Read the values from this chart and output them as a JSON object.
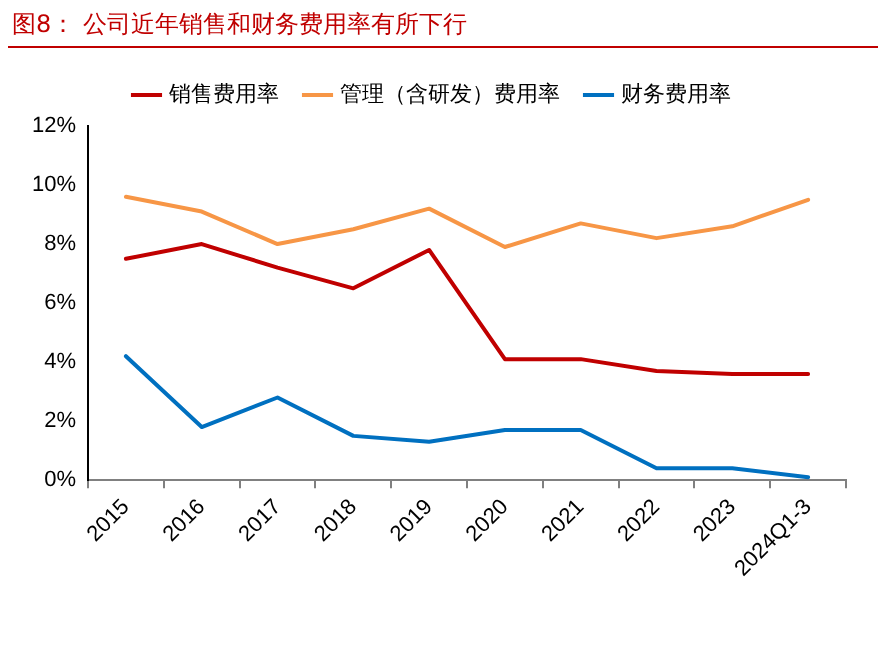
{
  "chart_data": {
    "type": "line",
    "title": "图8：  公司近年销售和财务费用率有所下行",
    "categories": [
      "2015",
      "2016",
      "2017",
      "2018",
      "2019",
      "2020",
      "2021",
      "2022",
      "2023",
      "2024Q1-3"
    ],
    "series": [
      {
        "name": "销售费用率",
        "color": "#c00000",
        "values": [
          7.5,
          8.0,
          7.2,
          6.5,
          7.8,
          4.1,
          4.1,
          3.7,
          3.6,
          3.6
        ]
      },
      {
        "name": "管理（含研发）费用率",
        "color": "#f79646",
        "values": [
          9.6,
          9.1,
          8.0,
          8.5,
          9.2,
          7.9,
          8.7,
          8.2,
          8.6,
          9.5
        ]
      },
      {
        "name": "财务费用率",
        "color": "#0070c0",
        "values": [
          4.2,
          1.8,
          2.8,
          1.5,
          1.3,
          1.7,
          1.7,
          0.4,
          0.4,
          0.1
        ]
      }
    ],
    "ylim": [
      0,
      12
    ],
    "yticks": [
      {
        "value": 0,
        "label": "0%"
      },
      {
        "value": 2,
        "label": "2%"
      },
      {
        "value": 4,
        "label": "4%"
      },
      {
        "value": 6,
        "label": "6%"
      },
      {
        "value": 8,
        "label": "8%"
      },
      {
        "value": 10,
        "label": "10%"
      },
      {
        "value": 12,
        "label": "12%"
      }
    ],
    "grid": false,
    "legend": "top",
    "marker": "none",
    "line_style": "solid"
  }
}
